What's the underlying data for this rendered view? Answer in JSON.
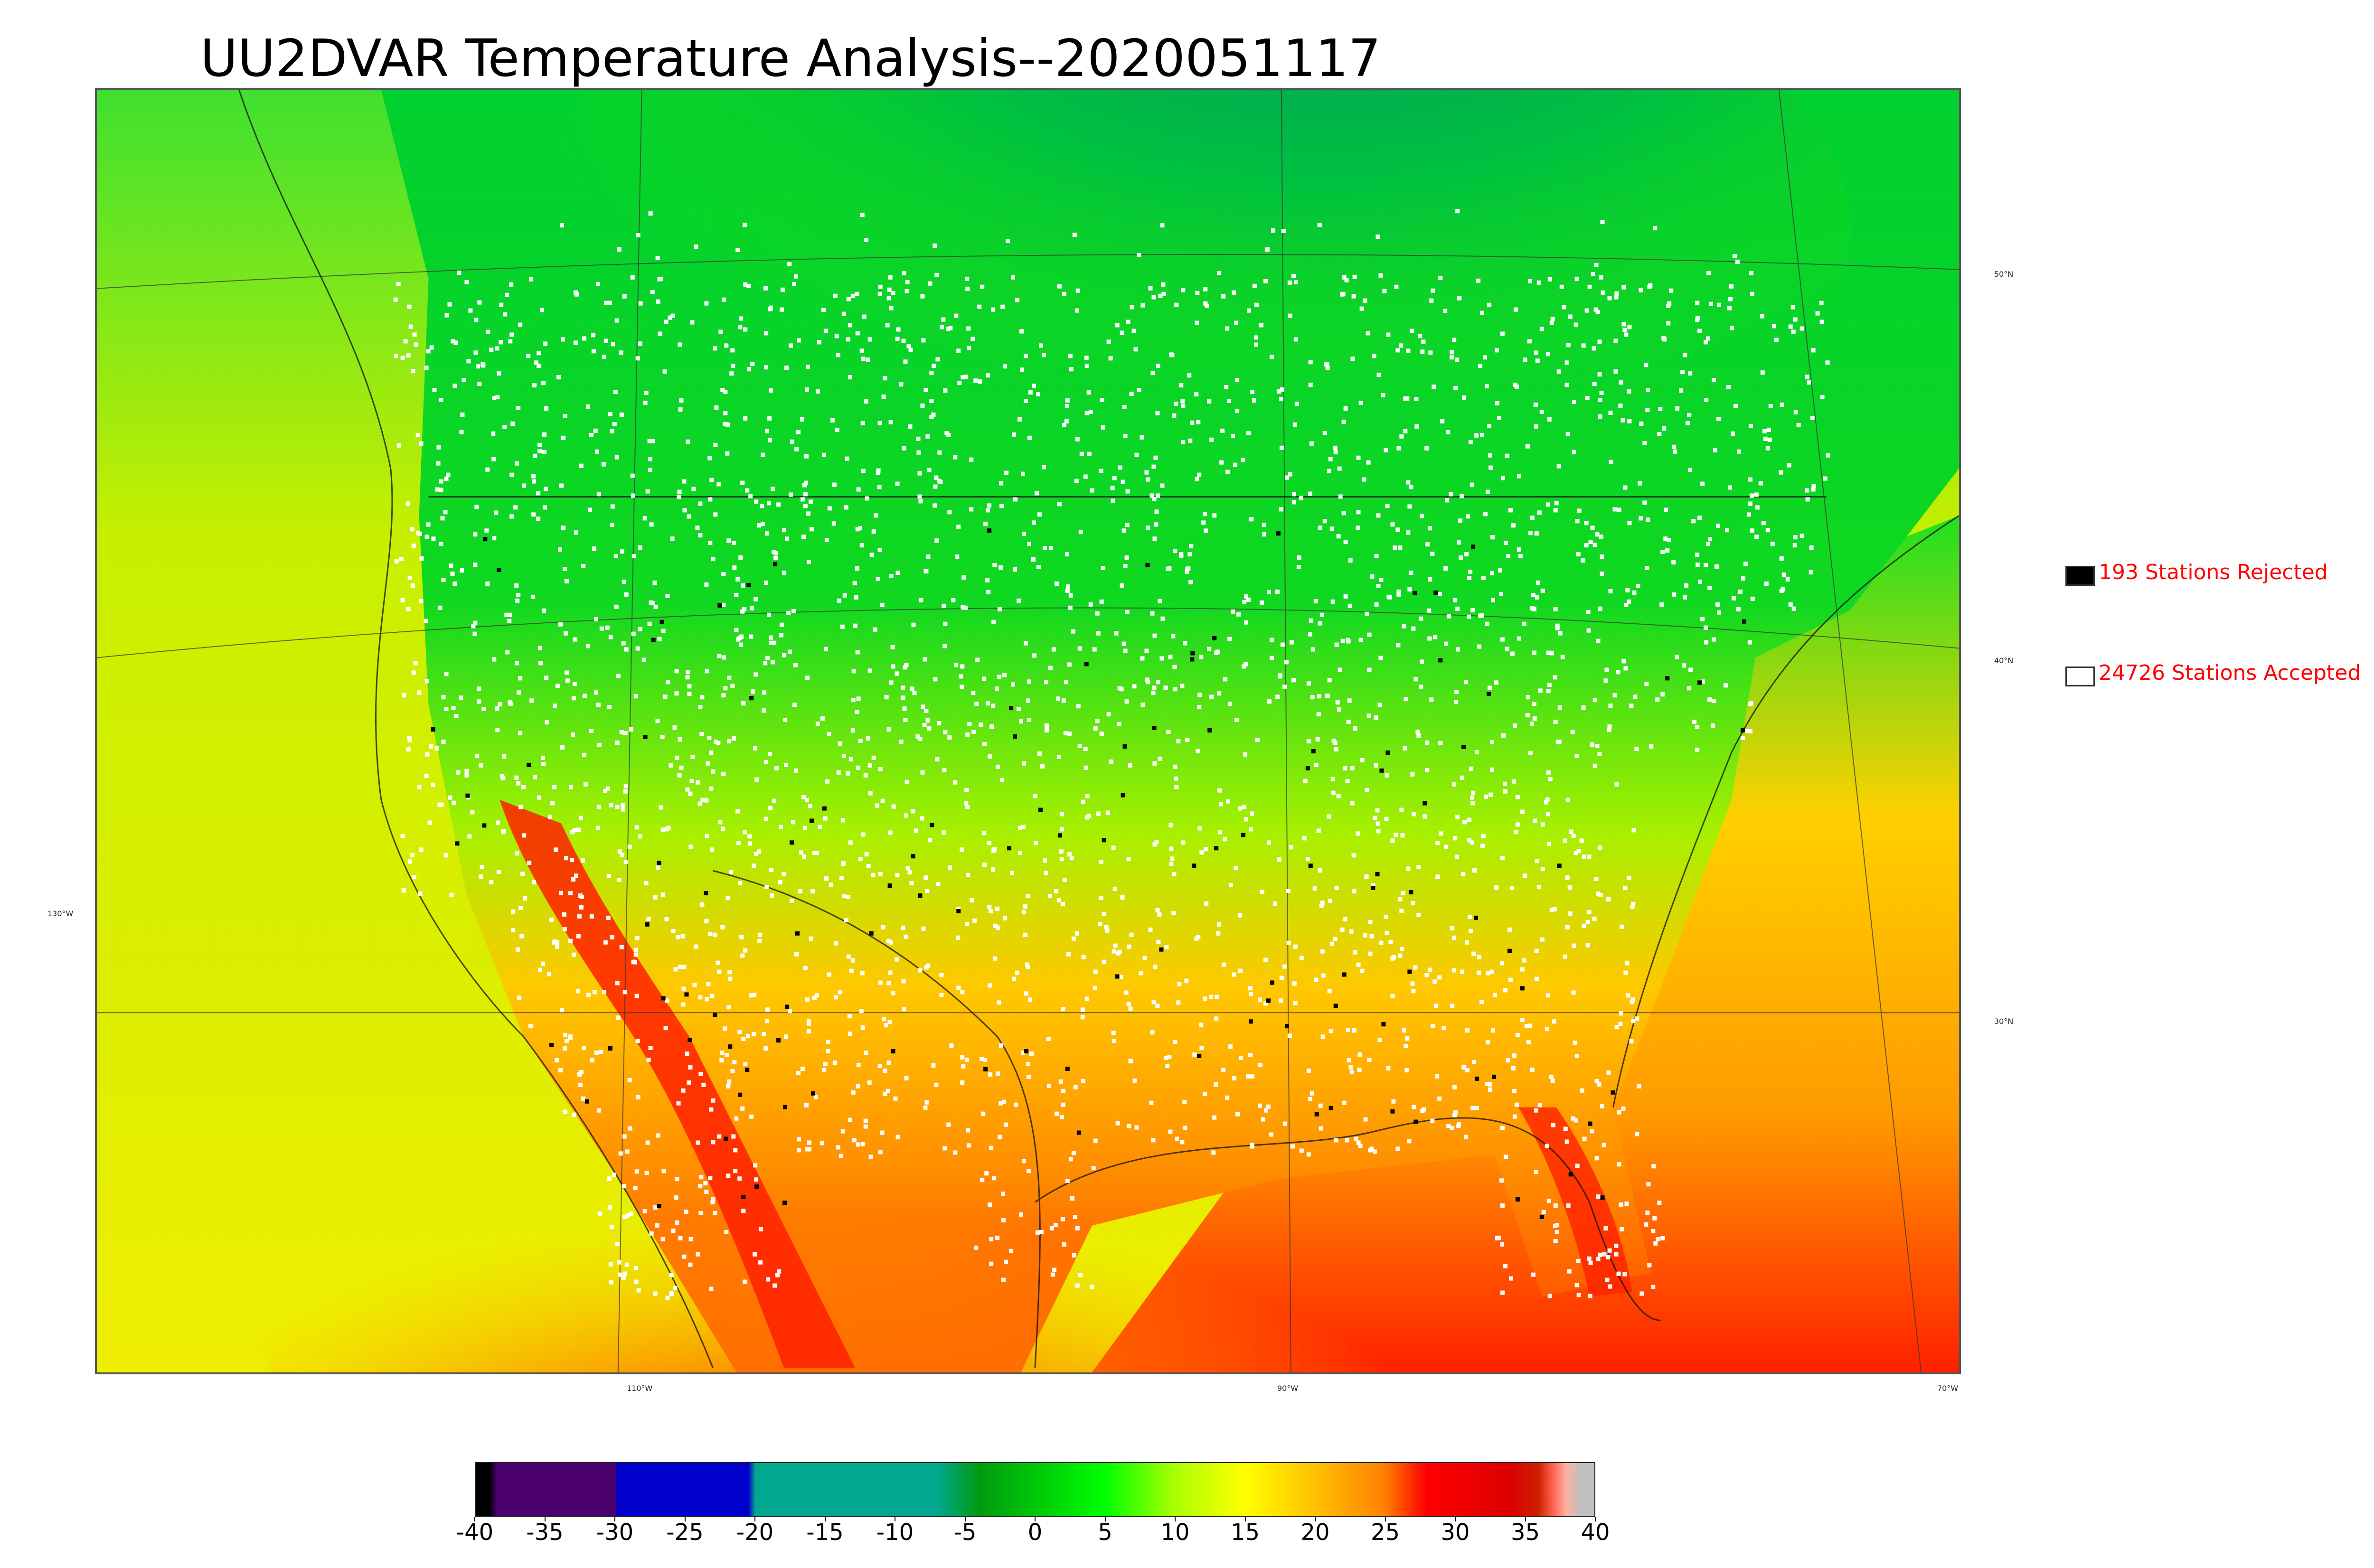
{
  "title": "UU2DVAR Temperature Analysis--2020051117",
  "map": {
    "lon_labels": [
      "130°W",
      "110°W",
      "90°W",
      "70°W"
    ],
    "lat_labels": [
      "50°N",
      "40°N",
      "30°N"
    ],
    "colors": {
      "ocean_west": "#e6ef00",
      "cold_north": "#00b65a",
      "cool": "#22dd11",
      "warm": "#ffb400",
      "hot": "#ff1a00",
      "atlantic": "#ff9c00",
      "stations_accepted": "#ffffff",
      "stations_rejected": "#000000"
    }
  },
  "legend": {
    "rejected": {
      "text": "193 Stations Rejected",
      "count": 193,
      "color": "#000000"
    },
    "accepted": {
      "text": "24726 Stations Accepted",
      "count": 24726,
      "color": "#ffffff"
    }
  },
  "colorbar": {
    "ticks": [
      "-40",
      "-35",
      "-30",
      "-25",
      "-20",
      "-15",
      "-10",
      "-5",
      "0",
      "5",
      "10",
      "15",
      "20",
      "25",
      "30",
      "35",
      "40"
    ],
    "min": -40,
    "max": 40,
    "stops": [
      {
        "value": -40,
        "color": "#000000"
      },
      {
        "value": -39,
        "color": "#000000"
      },
      {
        "value": -38.5,
        "color": "#4b0070"
      },
      {
        "value": -30,
        "color": "#4b0070"
      },
      {
        "value": -29.9,
        "color": "#0000cc"
      },
      {
        "value": -20.5,
        "color": "#0000cc"
      },
      {
        "value": -20,
        "color": "#00a890"
      },
      {
        "value": -7,
        "color": "#00a890"
      },
      {
        "value": -4,
        "color": "#009a10"
      },
      {
        "value": 5,
        "color": "#00ff00"
      },
      {
        "value": 10,
        "color": "#aaff00"
      },
      {
        "value": 15,
        "color": "#ffff00"
      },
      {
        "value": 20,
        "color": "#ffc000"
      },
      {
        "value": 25,
        "color": "#ff8000"
      },
      {
        "value": 28,
        "color": "#ff0000"
      },
      {
        "value": 34,
        "color": "#dd0000"
      },
      {
        "value": 36,
        "color": "#cc2000"
      },
      {
        "value": 37,
        "color": "#ff6050"
      },
      {
        "value": 38,
        "color": "#ffb0a0"
      },
      {
        "value": 39,
        "color": "#c0c0c0"
      },
      {
        "value": 40,
        "color": "#c0c0c0"
      }
    ]
  }
}
